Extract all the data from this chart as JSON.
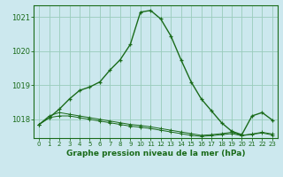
{
  "title": "Graphe pression niveau de la mer (hPa)",
  "bg_color": "#cce8ee",
  "grid_color": "#99ccbb",
  "line_color": "#1a6b1a",
  "xlim": [
    -0.5,
    23.5
  ],
  "ylim": [
    1017.45,
    1021.35
  ],
  "yticks": [
    1018,
    1019,
    1020,
    1021
  ],
  "xticks": [
    0,
    1,
    2,
    3,
    4,
    5,
    6,
    7,
    8,
    9,
    10,
    11,
    12,
    13,
    14,
    15,
    16,
    17,
    18,
    19,
    20,
    21,
    22,
    23
  ],
  "series1_x": [
    0,
    1,
    2,
    3,
    4,
    5,
    6,
    7,
    8,
    9,
    10,
    11,
    12,
    13,
    14,
    15,
    16,
    17,
    18,
    19,
    20,
    21,
    22,
    23
  ],
  "series1_y": [
    1017.85,
    1018.05,
    1018.3,
    1018.6,
    1018.85,
    1018.95,
    1019.1,
    1019.45,
    1019.75,
    1020.2,
    1021.15,
    1021.2,
    1020.95,
    1020.45,
    1019.75,
    1019.1,
    1018.6,
    1018.25,
    1017.9,
    1017.65,
    1017.55,
    1018.1,
    1018.2,
    1017.98
  ],
  "series2_x": [
    0,
    1,
    2,
    3,
    4,
    5,
    6,
    7,
    8,
    9,
    10,
    11,
    12,
    13,
    14,
    15,
    16,
    17,
    18,
    19,
    20,
    21,
    22,
    23
  ],
  "series2_y": [
    1017.85,
    1018.1,
    1018.2,
    1018.15,
    1018.1,
    1018.05,
    1018.0,
    1017.95,
    1017.9,
    1017.85,
    1017.82,
    1017.78,
    1017.73,
    1017.68,
    1017.63,
    1017.58,
    1017.53,
    1017.55,
    1017.58,
    1017.62,
    1017.53,
    1017.57,
    1017.62,
    1017.57
  ],
  "series3_x": [
    0,
    1,
    2,
    3,
    4,
    5,
    6,
    7,
    8,
    9,
    10,
    11,
    12,
    13,
    14,
    15,
    16,
    17,
    18,
    19,
    20,
    21,
    22,
    23
  ],
  "series3_y": [
    1017.85,
    1018.05,
    1018.1,
    1018.1,
    1018.05,
    1018.0,
    1017.95,
    1017.9,
    1017.85,
    1017.8,
    1017.77,
    1017.73,
    1017.68,
    1017.63,
    1017.58,
    1017.53,
    1017.5,
    1017.52,
    1017.55,
    1017.58,
    1017.52,
    1017.56,
    1017.6,
    1017.54
  ]
}
